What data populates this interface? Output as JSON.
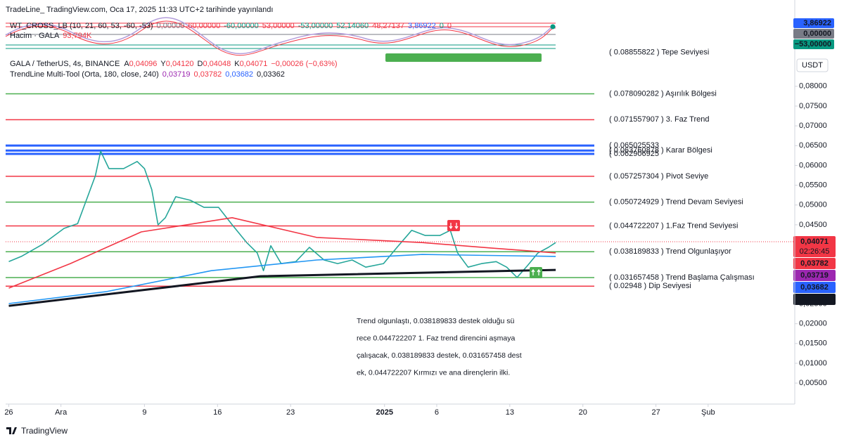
{
  "header": {
    "published": "TradeLine_ TradingView.com, Oca 17, 2025 11:33 UTC+2 tarihinde yayınlandı",
    "indicator": {
      "title": "WT_CROSS_LB (10, 21, 60, 53, -60, -53)",
      "values": [
        {
          "text": "0,00000",
          "color": "#787b86"
        },
        {
          "text": "60,00000",
          "color": "#f23645"
        },
        {
          "text": "-60,00000",
          "color": "#089981"
        },
        {
          "text": "53,00000",
          "color": "#f23645"
        },
        {
          "text": "-53,00000",
          "color": "#089981"
        },
        {
          "text": "52,14060",
          "color": "#089981"
        },
        {
          "text": "48,27137",
          "color": "#f23645"
        },
        {
          "text": "3,86922",
          "color": "#2962ff"
        },
        {
          "text": "0",
          "color": "#089981"
        },
        {
          "text": "0",
          "color": "#f23645"
        }
      ]
    },
    "volume": {
      "title": "Hacim · GALA",
      "value": "93,794K"
    },
    "symbol": {
      "title": "GALA / TetherUS, 4s, BINANCE",
      "ohlc": [
        {
          "label": "A",
          "value": "0,04096"
        },
        {
          "label": "Y",
          "value": "0,04120"
        },
        {
          "label": "D",
          "value": "0,04048"
        },
        {
          "label": "K",
          "value": "0,04071"
        }
      ],
      "change": "−0,00026 (−0,63%)"
    },
    "tool": {
      "title": "TrendLine Multi-Tool (Orta, 180, close, 240)",
      "values": [
        {
          "text": "0,03719",
          "color": "#9c27b0"
        },
        {
          "text": "0,03782",
          "color": "#f23645"
        },
        {
          "text": "0,03682",
          "color": "#2962ff"
        },
        {
          "text": "0,03362",
          "color": "#131722"
        }
      ]
    }
  },
  "indicator_badges": [
    {
      "label": "3,86922",
      "color": "#2962ff"
    },
    {
      "label": "0,00000",
      "color": "#787b86"
    },
    {
      "label": "−53,00000",
      "color": "#089981"
    }
  ],
  "currency": "USDT",
  "annotation": {
    "color": "#2962ff",
    "lines": [
      "Trend olgunlaştı, 0.038189833 destek olduğu  sü",
      "rece 0.044722207 1. Faz trend direncini aşmaya",
      "çalışacak, 0.038189833 destek, 0.031657458 dest",
      "ek, 0.044722207 Kırmızı ve ana dirençlerin ilki."
    ]
  },
  "footer": "TradingView",
  "chart_data": {
    "type": "line",
    "xlim": [
      -0.3,
      75.3
    ],
    "ylim": [
      -0.0003,
      0.0876
    ],
    "yticks": [
      {
        "value": 0.08,
        "label": "0,08000"
      },
      {
        "value": 0.075,
        "label": "0,07500"
      },
      {
        "value": 0.07,
        "label": "0,07000"
      },
      {
        "value": 0.065,
        "label": "0,06500"
      },
      {
        "value": 0.06,
        "label": "0,06000"
      },
      {
        "value": 0.055,
        "label": "0,05500"
      },
      {
        "value": 0.05,
        "label": "0,05000"
      },
      {
        "value": 0.045,
        "label": "0,04500"
      },
      {
        "value": 0.025,
        "label": "0,02500"
      },
      {
        "value": 0.02,
        "label": "0,02000"
      },
      {
        "value": 0.015,
        "label": "0,01500"
      },
      {
        "value": 0.01,
        "label": "0,01000"
      },
      {
        "value": 0.005,
        "label": "0,00500"
      }
    ],
    "xticks": [
      {
        "value": 0,
        "label": "26"
      },
      {
        "value": 5,
        "label": "Ara"
      },
      {
        "value": 13,
        "label": "9"
      },
      {
        "value": 20,
        "label": "16"
      },
      {
        "value": 27,
        "label": "23"
      },
      {
        "value": 36,
        "label": "2025"
      },
      {
        "value": 41,
        "label": "6"
      },
      {
        "value": 48,
        "label": "13"
      },
      {
        "value": 55,
        "label": "20"
      },
      {
        "value": 62,
        "label": "27"
      },
      {
        "value": 67,
        "label": "Şub"
      }
    ],
    "series": [
      {
        "color": "#26a69a",
        "x": [
          0,
          1.2,
          3.2,
          5.3,
          6.6,
          7.3,
          8.3,
          8.8,
          9.6,
          11.0,
          12.3,
          13.0,
          13.7,
          14.3,
          15.0,
          16.0,
          17.4,
          18.7,
          20.1,
          21.4,
          22.8,
          23.8,
          24.4,
          25.1,
          26.1,
          27.5,
          28.8,
          30.2,
          31.5,
          32.9,
          34.2,
          35.9,
          37.2,
          38.6,
          39.9,
          41.3,
          42.3,
          43.0,
          44.0,
          45.3,
          46.7,
          47.7,
          48.7,
          49.7,
          50.7,
          51.7,
          52.4
        ],
        "values": [
          0.0357,
          0.037,
          0.04,
          0.0441,
          0.0453,
          0.0503,
          0.0574,
          0.0636,
          0.0592,
          0.0592,
          0.061,
          0.0592,
          0.0539,
          0.045,
          0.0468,
          0.0521,
          0.0512,
          0.0494,
          0.0494,
          0.045,
          0.0405,
          0.0379,
          0.0334,
          0.0397,
          0.0352,
          0.0357,
          0.0393,
          0.0361,
          0.0352,
          0.0361,
          0.0343,
          0.0352,
          0.0393,
          0.0436,
          0.0423,
          0.0423,
          0.0436,
          0.0379,
          0.0343,
          0.0352,
          0.0357,
          0.0343,
          0.0317,
          0.0347,
          0.0379,
          0.0393,
          0.0405
        ]
      },
      {
        "color": "#f23645",
        "x": [
          0,
          5.9,
          12.7,
          21.4,
          29.5,
          39.6,
          46.3,
          52.4
        ],
        "values": [
          0.029,
          0.0352,
          0.0432,
          0.0468,
          0.0418,
          0.0405,
          0.0391,
          0.0379
        ]
      },
      {
        "color": "#2196f3",
        "x": [
          0,
          9.3,
          19.4,
          29.5,
          39.6,
          52.4
        ],
        "values": [
          0.0251,
          0.0281,
          0.0334,
          0.0361,
          0.0375,
          0.037
        ]
      },
      {
        "color": "#131722",
        "x": [
          0,
          24.1,
          52.4
        ],
        "values": [
          0.0245,
          0.032,
          0.0336
        ]
      }
    ],
    "levels": [
      {
        "value": 0.08855822,
        "label": "( 0.08855822  ) Tepe Seviyesi",
        "color": "#f23645"
      },
      {
        "value": 0.078090282,
        "label": "( 0.078090282  ) Aşırılık Bölgesi",
        "color": "#4caf50"
      },
      {
        "value": 0.071557907,
        "label": "( 0.071557907  ) 3. Faz Trend",
        "color": "#f23645"
      },
      {
        "value": 0.065025533,
        "label": "( 0.065025533",
        "color": "#2962ff"
      },
      {
        "value": 0.063760878,
        "label": "( 0.063760878  ) Karar Bölgesi",
        "color": "#2962ff"
      },
      {
        "value": 0.062906925,
        "label": "( 0.062906925",
        "color": "#2962ff"
      },
      {
        "value": 0.057257304,
        "label": "( 0.057257304  ) Pivot Seviye",
        "color": "#f23645"
      },
      {
        "value": 0.050724929,
        "label": "( 0.050724929  ) Trend Devam Seviyesi",
        "color": "#4caf50"
      },
      {
        "value": 0.044722207,
        "label": "( 0.044722207  ) 1.Faz Trend Seviyesi",
        "color": "#f23645"
      },
      {
        "value": 0.038189833,
        "label": "( 0.038189833  ) Trend Olgunlaşıyor",
        "color": "#4caf50"
      },
      {
        "value": 0.031657458,
        "label": "( 0.031657458  ) Trend Başlama Çalışması",
        "color": "#4caf50"
      },
      {
        "value": 0.02948,
        "label": "( 0.02948 ) Dip Seviyesi",
        "color": "#f23645"
      }
    ],
    "price_badges": [
      {
        "value": 0.04071,
        "label": "0,04071",
        "countdown": "02:26:45",
        "color": "#f23645"
      },
      {
        "value": 0.03782,
        "label": "0,03782",
        "color": "#f23645"
      },
      {
        "value": 0.03719,
        "label": "0,03719",
        "color": "#9c27b0"
      },
      {
        "value": 0.03682,
        "label": "0,03682",
        "color": "#2962ff"
      },
      {
        "value": 0.03362,
        "label": "0,03362",
        "color": "#131722"
      }
    ]
  }
}
